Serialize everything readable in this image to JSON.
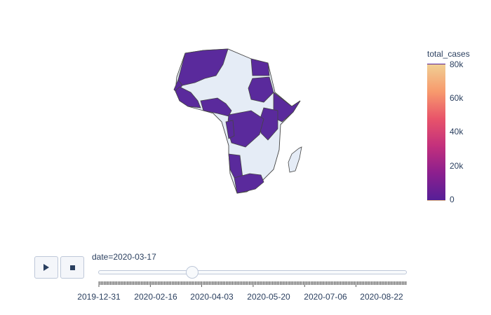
{
  "slider": {
    "current_label": "date=",
    "current_value": "2020-03-17",
    "position_fraction": 0.304,
    "tick_labels": [
      "2019-12-31",
      "2020-02-16",
      "2020-04-03",
      "2020-05-20",
      "2020-07-06",
      "2020-08-22"
    ],
    "tick_count": 240
  },
  "controls": {
    "play_icon": "play-icon",
    "stop_icon": "stop-icon"
  },
  "colorbar": {
    "title": "total_cases",
    "ticks": [
      "80k",
      "60k",
      "40k",
      "20k",
      "0"
    ],
    "range": [
      0,
      80000
    ],
    "colors": [
      "#f0cf93",
      "#f79a6d",
      "#e8546a",
      "#c3307c",
      "#8c1f8e",
      "#561f97"
    ]
  },
  "map": {
    "scope": "africa",
    "reporting_color": "#5a2a9c",
    "no_data_color": "#e5ecf6",
    "border_color": "#444444"
  }
}
